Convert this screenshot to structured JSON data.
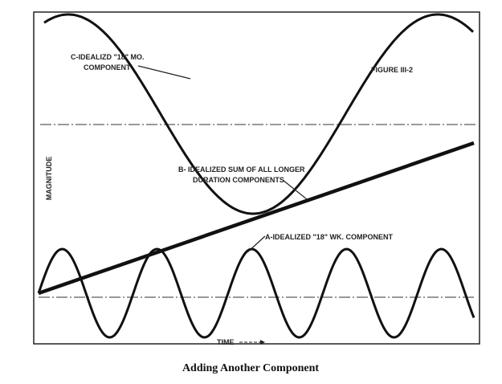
{
  "figure_label": "FIGURE III-2",
  "y_axis_label": "MAGNITUDE",
  "x_axis_label": "TIME",
  "curve_c": {
    "label_line1": "C-IDEALIZD \"18\" MO.",
    "label_line2": "COMPONENT"
  },
  "curve_b": {
    "label_line1": "B- IDEALIZED SUM OF ALL LONGER",
    "label_line2": "DURATION COMPONENTS"
  },
  "curve_a": {
    "label": "A-IDEALIZED \"18\" WK. COMPONENT"
  },
  "caption": "Adding Another Component"
}
